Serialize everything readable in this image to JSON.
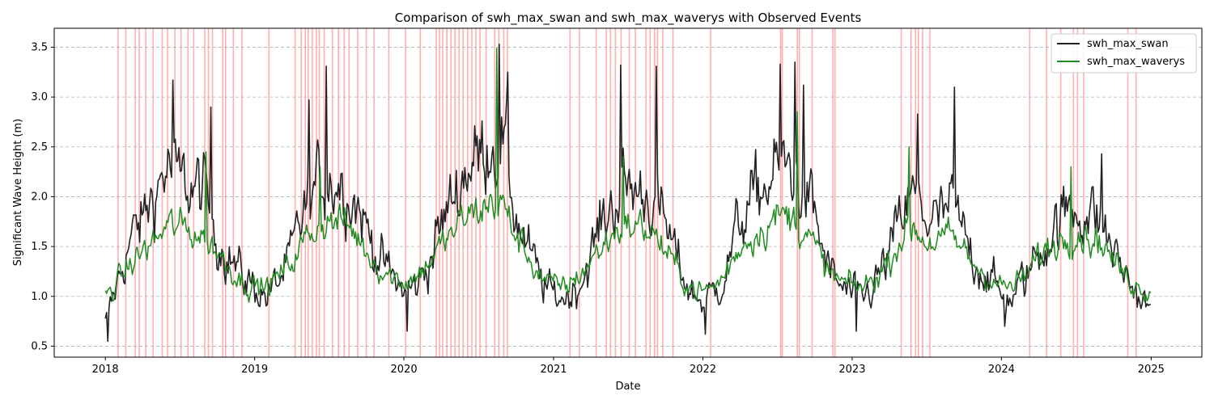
{
  "chart_data": {
    "type": "line",
    "title": "Comparison of swh_max_swan and swh_max_waverys with Observed Events",
    "xlabel": "Date",
    "ylabel": "Significant Wave Height (m)",
    "x_range": [
      "2018-01-01",
      "2025-01-01"
    ],
    "xlim": [
      "2017-08-29",
      "2025-05-05"
    ],
    "ylim": [
      0.39,
      3.69
    ],
    "x_ticks": [
      "2018",
      "2019",
      "2020",
      "2021",
      "2022",
      "2023",
      "2024",
      "2025"
    ],
    "y_ticks": [
      "0.5",
      "1.0",
      "1.5",
      "2.0",
      "2.5",
      "3.0",
      "3.5"
    ],
    "grid": "horizontal dashed",
    "legend_position": "top-right",
    "series": [
      {
        "name": "swh_max_swan",
        "color": "#222222",
        "points": [
          [
            "2018-01-01",
            0.72
          ],
          [
            "2018-02-01",
            1.15
          ],
          [
            "2018-03-01",
            1.55
          ],
          [
            "2018-04-01",
            1.75
          ],
          [
            "2018-05-01",
            2.05
          ],
          [
            "2018-06-01",
            2.3
          ],
          [
            "2018-07-01",
            2.15
          ],
          [
            "2018-08-01",
            2.1
          ],
          [
            "2018-09-01",
            2.05
          ],
          [
            "2018-10-01",
            1.6
          ],
          [
            "2018-11-01",
            1.4
          ],
          [
            "2018-12-01",
            1.2
          ],
          [
            "2019-01-01",
            1.1
          ],
          [
            "2019-02-01",
            1.0
          ],
          [
            "2019-03-01",
            1.15
          ],
          [
            "2019-04-01",
            1.4
          ],
          [
            "2019-05-01",
            1.85
          ],
          [
            "2019-06-01",
            2.1
          ],
          [
            "2019-07-01",
            2.2
          ],
          [
            "2019-08-01",
            2.15
          ],
          [
            "2019-09-01",
            2.0
          ],
          [
            "2019-10-01",
            1.7
          ],
          [
            "2019-11-01",
            1.4
          ],
          [
            "2019-12-01",
            1.2
          ],
          [
            "2020-01-01",
            1.05
          ],
          [
            "2020-02-01",
            1.1
          ],
          [
            "2020-03-01",
            1.35
          ],
          [
            "2020-04-01",
            1.7
          ],
          [
            "2020-05-01",
            2.0
          ],
          [
            "2020-06-01",
            2.3
          ],
          [
            "2020-07-01",
            2.4
          ],
          [
            "2020-08-01",
            2.6
          ],
          [
            "2020-09-01",
            2.5
          ],
          [
            "2020-10-01",
            1.8
          ],
          [
            "2020-11-01",
            1.45
          ],
          [
            "2020-12-01",
            1.15
          ],
          [
            "2021-01-01",
            1.0
          ],
          [
            "2021-02-01",
            1.0
          ],
          [
            "2021-03-01",
            1.1
          ],
          [
            "2021-04-01",
            1.4
          ],
          [
            "2021-05-01",
            1.75
          ],
          [
            "2021-06-01",
            2.0
          ],
          [
            "2021-07-01",
            2.1
          ],
          [
            "2021-08-01",
            2.05
          ],
          [
            "2021-09-01",
            2.0
          ],
          [
            "2021-10-01",
            1.7
          ],
          [
            "2021-11-01",
            1.35
          ],
          [
            "2021-12-01",
            1.05
          ],
          [
            "2022-01-01",
            0.95
          ],
          [
            "2022-02-01",
            1.05
          ],
          [
            "2022-03-01",
            1.3
          ],
          [
            "2022-04-01",
            1.75
          ],
          [
            "2022-05-01",
            1.95
          ],
          [
            "2022-06-01",
            2.1
          ],
          [
            "2022-07-01",
            2.25
          ],
          [
            "2022-08-01",
            2.3
          ],
          [
            "2022-09-01",
            2.1
          ],
          [
            "2022-10-01",
            1.8
          ],
          [
            "2022-11-01",
            1.3
          ],
          [
            "2022-12-01",
            1.1
          ],
          [
            "2023-01-01",
            1.0
          ],
          [
            "2023-02-01",
            1.0
          ],
          [
            "2023-03-01",
            1.15
          ],
          [
            "2023-04-01",
            1.4
          ],
          [
            "2023-05-01",
            1.8
          ],
          [
            "2023-06-01",
            2.0
          ],
          [
            "2023-07-01",
            1.8
          ],
          [
            "2023-08-01",
            1.75
          ],
          [
            "2023-09-01",
            1.9
          ],
          [
            "2023-10-01",
            1.6
          ],
          [
            "2023-11-01",
            1.35
          ],
          [
            "2023-12-01",
            1.2
          ],
          [
            "2024-01-01",
            1.0
          ],
          [
            "2024-02-01",
            1.0
          ],
          [
            "2024-03-01",
            1.2
          ],
          [
            "2024-04-01",
            1.45
          ],
          [
            "2024-05-01",
            1.65
          ],
          [
            "2024-06-01",
            1.8
          ],
          [
            "2024-07-01",
            1.9
          ],
          [
            "2024-08-01",
            1.85
          ],
          [
            "2024-09-01",
            1.75
          ],
          [
            "2024-10-01",
            1.45
          ],
          [
            "2024-11-01",
            1.2
          ],
          [
            "2024-12-01",
            1.0
          ],
          [
            "2025-01-01",
            0.85
          ]
        ],
        "peaks": [
          [
            "2018-01-07",
            0.55
          ],
          [
            "2018-06-15",
            3.17
          ],
          [
            "2018-09-15",
            2.9
          ],
          [
            "2019-06-25",
            3.31
          ],
          [
            "2019-05-15",
            2.97
          ],
          [
            "2020-08-20",
            3.53
          ],
          [
            "2020-09-12",
            3.25
          ],
          [
            "2020-01-10",
            0.65
          ],
          [
            "2021-06-15",
            3.32
          ],
          [
            "2021-09-10",
            3.31
          ],
          [
            "2022-01-08",
            0.62
          ],
          [
            "2022-07-10",
            3.33
          ],
          [
            "2022-08-15",
            3.35
          ],
          [
            "2022-09-05",
            3.12
          ],
          [
            "2023-01-12",
            0.65
          ],
          [
            "2023-09-08",
            3.1
          ],
          [
            "2023-06-10",
            2.83
          ],
          [
            "2024-01-10",
            0.7
          ],
          [
            "2024-09-01",
            2.43
          ]
        ]
      },
      {
        "name": "swh_max_waverys",
        "color": "#228B22",
        "points": [
          [
            "2018-01-01",
            1.0
          ],
          [
            "2018-02-01",
            1.15
          ],
          [
            "2018-03-01",
            1.3
          ],
          [
            "2018-04-01",
            1.45
          ],
          [
            "2018-05-01",
            1.55
          ],
          [
            "2018-06-01",
            1.7
          ],
          [
            "2018-07-01",
            1.7
          ],
          [
            "2018-08-01",
            1.65
          ],
          [
            "2018-09-01",
            1.6
          ],
          [
            "2018-10-01",
            1.45
          ],
          [
            "2018-11-01",
            1.3
          ],
          [
            "2018-12-01",
            1.15
          ],
          [
            "2019-01-01",
            1.1
          ],
          [
            "2019-02-01",
            1.1
          ],
          [
            "2019-03-01",
            1.2
          ],
          [
            "2019-04-01",
            1.35
          ],
          [
            "2019-05-01",
            1.55
          ],
          [
            "2019-06-01",
            1.7
          ],
          [
            "2019-07-01",
            1.75
          ],
          [
            "2019-08-01",
            1.75
          ],
          [
            "2019-09-01",
            1.65
          ],
          [
            "2019-10-01",
            1.45
          ],
          [
            "2019-11-01",
            1.3
          ],
          [
            "2019-12-01",
            1.2
          ],
          [
            "2020-01-01",
            1.15
          ],
          [
            "2020-02-01",
            1.2
          ],
          [
            "2020-03-01",
            1.35
          ],
          [
            "2020-04-01",
            1.5
          ],
          [
            "2020-05-01",
            1.65
          ],
          [
            "2020-06-01",
            1.8
          ],
          [
            "2020-07-01",
            1.85
          ],
          [
            "2020-08-01",
            1.95
          ],
          [
            "2020-09-01",
            1.9
          ],
          [
            "2020-10-01",
            1.6
          ],
          [
            "2020-11-01",
            1.4
          ],
          [
            "2020-12-01",
            1.2
          ],
          [
            "2021-01-01",
            1.1
          ],
          [
            "2021-02-01",
            1.1
          ],
          [
            "2021-03-01",
            1.2
          ],
          [
            "2021-04-01",
            1.35
          ],
          [
            "2021-05-01",
            1.5
          ],
          [
            "2021-06-01",
            1.65
          ],
          [
            "2021-07-01",
            1.7
          ],
          [
            "2021-08-01",
            1.7
          ],
          [
            "2021-09-01",
            1.65
          ],
          [
            "2021-10-01",
            1.45
          ],
          [
            "2021-11-01",
            1.25
          ],
          [
            "2021-12-01",
            1.1
          ],
          [
            "2022-01-01",
            1.05
          ],
          [
            "2022-02-01",
            1.1
          ],
          [
            "2022-03-01",
            1.25
          ],
          [
            "2022-04-01",
            1.5
          ],
          [
            "2022-05-01",
            1.6
          ],
          [
            "2022-06-01",
            1.7
          ],
          [
            "2022-07-01",
            1.8
          ],
          [
            "2022-08-01",
            1.8
          ],
          [
            "2022-09-01",
            1.7
          ],
          [
            "2022-10-01",
            1.5
          ],
          [
            "2022-11-01",
            1.25
          ],
          [
            "2022-12-01",
            1.15
          ],
          [
            "2023-01-01",
            1.1
          ],
          [
            "2023-02-01",
            1.1
          ],
          [
            "2023-03-01",
            1.2
          ],
          [
            "2023-04-01",
            1.35
          ],
          [
            "2023-05-01",
            1.6
          ],
          [
            "2023-06-01",
            1.7
          ],
          [
            "2023-07-01",
            1.55
          ],
          [
            "2023-08-01",
            1.55
          ],
          [
            "2023-09-01",
            1.6
          ],
          [
            "2023-10-01",
            1.45
          ],
          [
            "2023-11-01",
            1.3
          ],
          [
            "2023-12-01",
            1.2
          ],
          [
            "2024-01-01",
            1.1
          ],
          [
            "2024-02-01",
            1.1
          ],
          [
            "2024-03-01",
            1.2
          ],
          [
            "2024-04-01",
            1.4
          ],
          [
            "2024-05-01",
            1.5
          ],
          [
            "2024-06-01",
            1.6
          ],
          [
            "2024-07-01",
            1.65
          ],
          [
            "2024-08-01",
            1.6
          ],
          [
            "2024-09-01",
            1.55
          ],
          [
            "2024-10-01",
            1.35
          ],
          [
            "2024-11-01",
            1.2
          ],
          [
            "2024-12-01",
            1.1
          ],
          [
            "2025-01-01",
            1.05
          ]
        ],
        "peaks": [
          [
            "2020-08-15",
            3.49
          ],
          [
            "2019-06-10",
            2.3
          ],
          [
            "2022-08-20",
            2.85
          ],
          [
            "2023-05-20",
            2.5
          ],
          [
            "2018-09-05",
            2.45
          ],
          [
            "2021-06-20",
            2.4
          ],
          [
            "2024-06-20",
            2.3
          ]
        ]
      }
    ],
    "observed_events": [
      "2018-02-01",
      "2018-02-20",
      "2018-03-15",
      "2018-03-25",
      "2018-04-10",
      "2018-04-28",
      "2018-05-20",
      "2018-06-02",
      "2018-06-20",
      "2018-07-05",
      "2018-07-22",
      "2018-08-05",
      "2018-09-01",
      "2018-09-10",
      "2018-09-20",
      "2018-10-15",
      "2018-10-22",
      "2018-11-10",
      "2018-12-01",
      "2019-02-05",
      "2019-04-10",
      "2019-04-25",
      "2019-05-05",
      "2019-05-12",
      "2019-05-22",
      "2019-06-01",
      "2019-06-08",
      "2019-06-20",
      "2019-07-10",
      "2019-07-25",
      "2019-08-08",
      "2019-08-20",
      "2019-09-10",
      "2019-10-01",
      "2019-10-20",
      "2019-11-25",
      "2020-01-05",
      "2020-02-10",
      "2020-03-20",
      "2020-03-28",
      "2020-04-05",
      "2020-04-15",
      "2020-04-25",
      "2020-05-05",
      "2020-05-15",
      "2020-05-25",
      "2020-06-05",
      "2020-06-15",
      "2020-06-25",
      "2020-07-05",
      "2020-07-20",
      "2020-08-10",
      "2020-08-20",
      "2020-09-01",
      "2020-09-10",
      "2021-02-10",
      "2021-03-05",
      "2021-04-15",
      "2021-05-10",
      "2021-05-20",
      "2021-06-01",
      "2021-06-15",
      "2021-07-05",
      "2021-07-20",
      "2021-08-15",
      "2021-08-25",
      "2021-09-05",
      "2021-09-12",
      "2021-09-25",
      "2021-10-20",
      "2022-01-20",
      "2022-07-10",
      "2022-07-14",
      "2022-08-20",
      "2022-08-25",
      "2022-09-25",
      "2022-11-15",
      "2022-11-20",
      "2023-05-01",
      "2023-05-25",
      "2023-06-05",
      "2023-06-12",
      "2023-06-22",
      "2023-07-10",
      "2024-03-10",
      "2024-04-20",
      "2024-05-25",
      "2024-06-25",
      "2024-07-05",
      "2024-07-20",
      "2024-11-05",
      "2024-11-25"
    ]
  }
}
